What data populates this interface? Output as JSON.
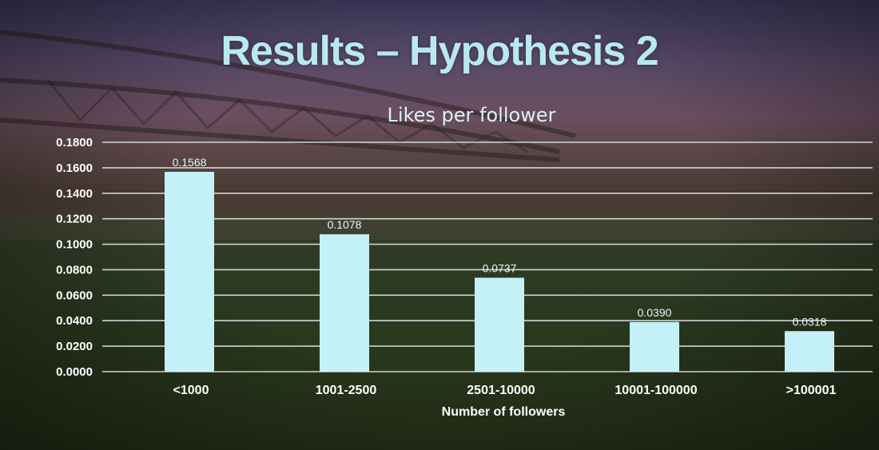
{
  "slide": {
    "title": "Results – Hypothesis 2"
  },
  "colors": {
    "bar": "#c4f1f7",
    "gridline": "#dfe6e6",
    "title": "#b9e9ef"
  },
  "chart_data": {
    "type": "bar",
    "title": "Likes per follower",
    "xlabel": "Number of followers",
    "ylabel": "",
    "categories": [
      "<1000",
      "1001-2500",
      "2501-10000",
      "10001-100000",
      ">100001"
    ],
    "values": [
      0.1568,
      0.1078,
      0.0737,
      0.039,
      0.0318
    ],
    "data_labels": [
      "0.1568",
      "0.1078",
      "0.0737",
      "0.0390",
      "0.0318"
    ],
    "ylim": [
      0,
      0.18
    ],
    "yticks": [
      "0.0000",
      "0.0200",
      "0.0400",
      "0.0600",
      "0.0800",
      "0.1000",
      "0.1200",
      "0.1400",
      "0.1600",
      "0.1800"
    ],
    "grid": true,
    "legend": "none"
  }
}
